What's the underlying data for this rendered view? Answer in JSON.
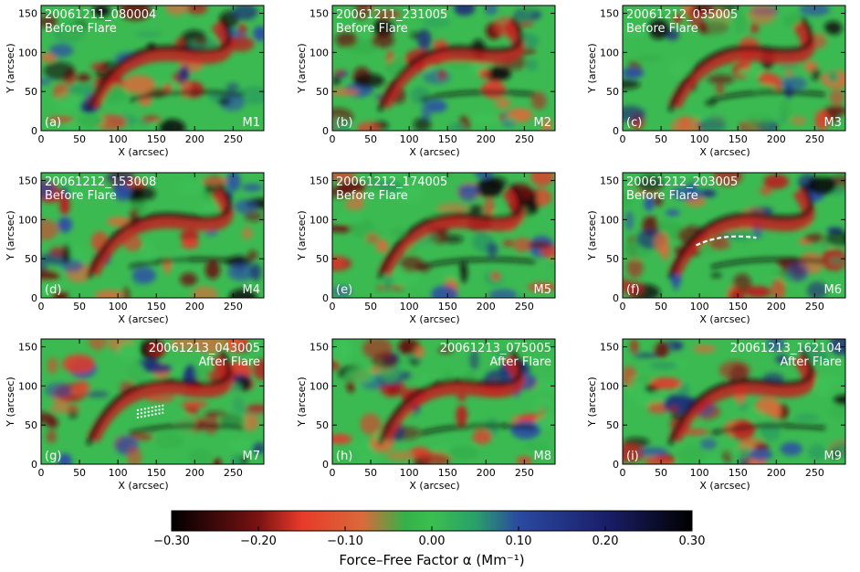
{
  "chart_data": {
    "type": "heatmap",
    "x_axis": {
      "label": "X (arcsec)",
      "lim": [
        0,
        290
      ],
      "ticks": [
        0,
        50,
        100,
        150,
        200,
        250
      ]
    },
    "y_axis": {
      "label": "Y (arcsec)",
      "lim": [
        0,
        160
      ],
      "ticks": [
        0,
        50,
        100,
        150
      ]
    },
    "panels": [
      {
        "id": "a",
        "letter": "(a)",
        "map": "M1",
        "timestamp": "20061211_080004",
        "state": "Before Flare",
        "label_side": "left"
      },
      {
        "id": "b",
        "letter": "(b)",
        "map": "M2",
        "timestamp": "20061211_231005",
        "state": "Before Flare",
        "label_side": "left"
      },
      {
        "id": "c",
        "letter": "(c)",
        "map": "M3",
        "timestamp": "20061212_035005",
        "state": "Before Flare",
        "label_side": "left"
      },
      {
        "id": "d",
        "letter": "(d)",
        "map": "M4",
        "timestamp": "20061212_153008",
        "state": "Before Flare",
        "label_side": "left"
      },
      {
        "id": "e",
        "letter": "(e)",
        "map": "M5",
        "timestamp": "20061212_174005",
        "state": "Before Flare",
        "label_side": "left"
      },
      {
        "id": "f",
        "letter": "(f)",
        "map": "M6",
        "timestamp": "20061212_203005",
        "state": "Before Flare",
        "label_side": "left"
      },
      {
        "id": "g",
        "letter": "(g)",
        "map": "M7",
        "timestamp": "20061213_043005",
        "state": "After Flare",
        "label_side": "right"
      },
      {
        "id": "h",
        "letter": "(h)",
        "map": "M8",
        "timestamp": "20061213_075005",
        "state": "After Flare",
        "label_side": "right"
      },
      {
        "id": "i",
        "letter": "(i)",
        "map": "M9",
        "timestamp": "20061213_162104",
        "state": "After Flare",
        "label_side": "right"
      }
    ],
    "colorbar": {
      "title": "Force–Free Factor α (Mm⁻¹)",
      "range": [
        -0.3,
        0.3
      ],
      "tick_values": [
        -0.3,
        -0.2,
        -0.1,
        0.0,
        0.1,
        0.2,
        0.3
      ],
      "tick_labels": [
        "−0.30",
        "−0.20",
        "−0.10",
        "0.00",
        "0.10",
        "0.20",
        "0.30"
      ],
      "colors": [
        {
          "value": -0.3,
          "color": "#000000"
        },
        {
          "value": -0.2,
          "color": "#7a1212"
        },
        {
          "value": -0.15,
          "color": "#e83a2a"
        },
        {
          "value": -0.08,
          "color": "#d96a3a"
        },
        {
          "value": -0.03,
          "color": "#33b24a"
        },
        {
          "value": 0.0,
          "color": "#3bbf4f"
        },
        {
          "value": 0.05,
          "color": "#2aa06a"
        },
        {
          "value": 0.1,
          "color": "#2a4aa0"
        },
        {
          "value": 0.2,
          "color": "#1a1f6a"
        },
        {
          "value": 0.3,
          "color": "#000000"
        }
      ]
    },
    "annotations": [
      {
        "panel": "f",
        "kind": "white dashed arc"
      },
      {
        "panel": "g",
        "kind": "white dashed lines"
      }
    ]
  }
}
